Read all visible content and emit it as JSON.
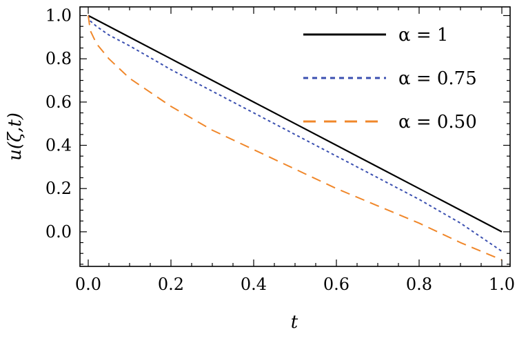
{
  "chart_data": {
    "type": "line",
    "title": "",
    "xlabel": "t",
    "ylabel": "u(ζ,t)",
    "xlim": [
      -0.02,
      1.02
    ],
    "ylim": [
      -0.16,
      1.04
    ],
    "xticks": [
      0.0,
      0.2,
      0.4,
      0.6,
      0.8,
      1.0
    ],
    "xtick_labels": [
      "0.0",
      "0.2",
      "0.4",
      "0.6",
      "0.8",
      "1.0"
    ],
    "yticks": [
      0.0,
      0.2,
      0.4,
      0.6,
      0.8,
      1.0
    ],
    "ytick_labels": [
      "0.0",
      "0.2",
      "0.4",
      "0.6",
      "0.8",
      "1.0"
    ],
    "grid": false,
    "legend_position": "top-right",
    "series": [
      {
        "name": "α = 1",
        "color": "#000000",
        "style": "solid",
        "x": [
          0,
          0.1,
          0.2,
          0.3,
          0.4,
          0.5,
          0.6,
          0.7,
          0.8,
          0.9,
          1.0
        ],
        "y": [
          1.0,
          0.9,
          0.8,
          0.7,
          0.6,
          0.5,
          0.4,
          0.3,
          0.2,
          0.1,
          0.0
        ]
      },
      {
        "name": "α = 0.75",
        "color": "#3a4fb0",
        "style": "dotted",
        "x": [
          0,
          0.005,
          0.02,
          0.05,
          0.1,
          0.2,
          0.3,
          0.4,
          0.5,
          0.6,
          0.7,
          0.8,
          0.9,
          1.0
        ],
        "y": [
          1.0,
          0.975,
          0.95,
          0.91,
          0.86,
          0.75,
          0.65,
          0.55,
          0.45,
          0.35,
          0.25,
          0.15,
          0.04,
          -0.09
        ]
      },
      {
        "name": "α = 0.50",
        "color": "#f0872a",
        "style": "dashed",
        "x": [
          0,
          0.005,
          0.02,
          0.05,
          0.1,
          0.2,
          0.3,
          0.4,
          0.5,
          0.6,
          0.7,
          0.8,
          0.9,
          1.0
        ],
        "y": [
          1.0,
          0.93,
          0.87,
          0.8,
          0.71,
          0.58,
          0.47,
          0.38,
          0.29,
          0.2,
          0.12,
          0.04,
          -0.05,
          -0.13
        ]
      }
    ]
  }
}
